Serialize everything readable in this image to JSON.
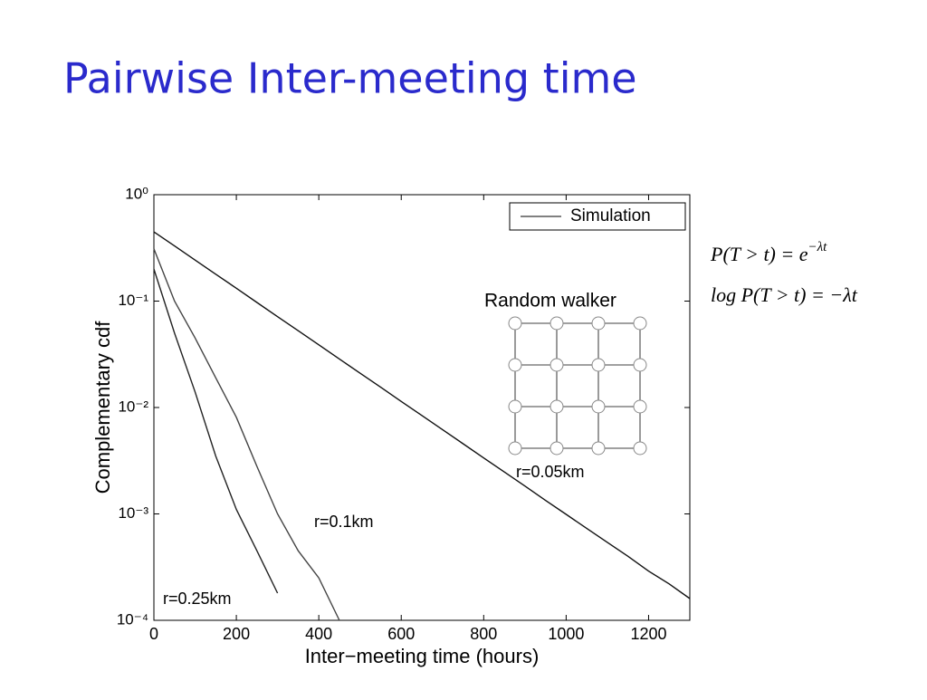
{
  "chart_data": {
    "type": "line",
    "title": "Pairwise Inter-meeting time",
    "xlabel": "Inter−meeting time (hours)",
    "ylabel": "Complementary cdf",
    "log_y": true,
    "x": [
      0,
      50,
      100,
      150,
      200,
      250,
      300,
      350,
      400,
      450,
      500,
      550,
      600,
      650,
      700,
      750,
      800,
      850,
      900,
      950,
      1000,
      1050,
      1100,
      1150,
      1200,
      1250,
      1300
    ],
    "series": [
      {
        "name": "r=0.05km",
        "color": "#111111",
        "values": [
          0.447,
          0.33,
          0.243,
          0.179,
          0.132,
          0.0971,
          0.0714,
          0.0527,
          0.0388,
          0.0286,
          0.021,
          0.0155,
          0.0114,
          0.00842,
          0.0062,
          0.00457,
          0.00336,
          0.00248,
          0.00183,
          0.00134,
          0.00099,
          0.00073,
          0.00054,
          0.0004,
          0.00029,
          0.00022,
          0.00016
        ]
      },
      {
        "name": "r=0.1km",
        "color": "#444444",
        "values": [
          0.31,
          0.1,
          0.045,
          0.019,
          0.0081,
          0.0028,
          0.001,
          0.00045,
          0.00025,
          0.0001,
          null,
          null,
          null,
          null,
          null,
          null,
          null,
          null,
          null,
          null,
          null,
          null,
          null,
          null,
          null,
          null,
          null
        ]
      },
      {
        "name": "r=0.25km",
        "color": "#222222",
        "values": [
          0.2,
          0.05,
          0.014,
          0.0035,
          0.0011,
          0.00045,
          0.00018,
          null,
          null,
          null,
          null,
          null,
          null,
          null,
          null,
          null,
          null,
          null,
          null,
          null,
          null,
          null,
          null,
          null,
          null,
          null,
          null
        ]
      }
    ],
    "legend_label": "Simulation",
    "legend": "upper right",
    "xlim": [
      0,
      1300
    ],
    "xticks": [
      0,
      200,
      400,
      600,
      800,
      1000,
      1200
    ],
    "ylim": [
      0.0001,
      1
    ],
    "yticks": [
      {
        "value": 1,
        "label": "10⁰"
      },
      {
        "value": 0.1,
        "label": "10⁻¹"
      },
      {
        "value": 0.01,
        "label": "10⁻²"
      },
      {
        "value": 0.001,
        "label": "10⁻³"
      },
      {
        "value": 0.0001,
        "label": "10⁻⁴"
      }
    ],
    "inset_label": "Random walker",
    "formulas": [
      {
        "base": "P(T > t) = e",
        "sup": "−λt"
      },
      {
        "base": "log P(T > t) = −λt"
      }
    ]
  }
}
